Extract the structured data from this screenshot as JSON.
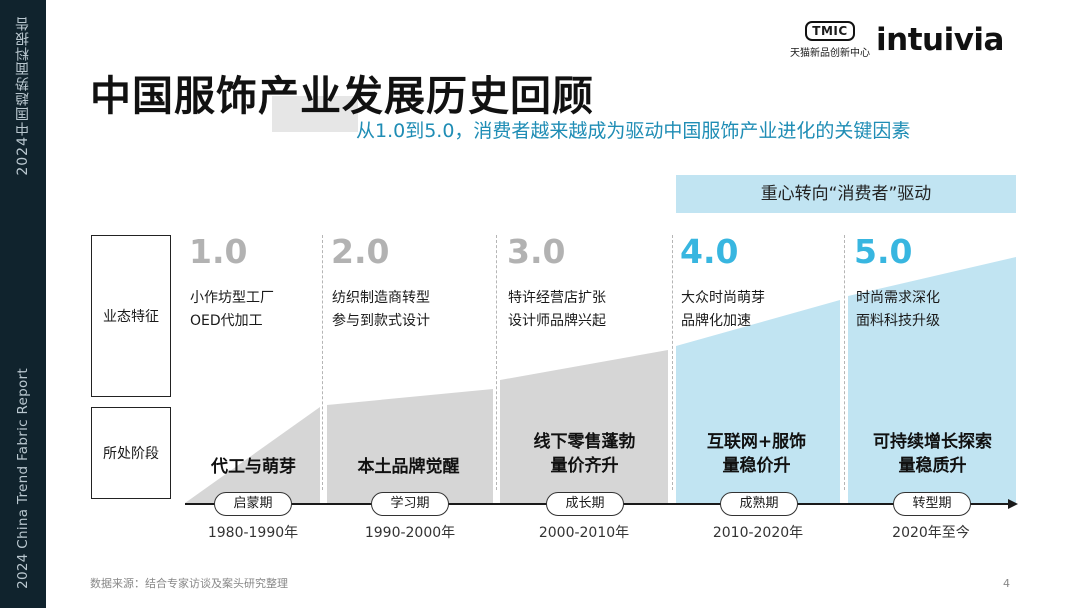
{
  "sidebar": {
    "top": "2024中国趋势面料报告",
    "bottom": "2024 China Trend Fabric Report"
  },
  "logos": {
    "tmic_badge": "TMIC",
    "tmic_sub": "天猫新品创新中心",
    "intuivia": "intuivia"
  },
  "header": {
    "title": "中国服饰产业发展历史回顾",
    "subtitle": "从1.0到5.0，消费者越来越成为驱动中国服饰产业进化的关键因素"
  },
  "banner": "重心转向“消费者”驱动",
  "rows": {
    "features": "业态特征",
    "stage": "所处阶段"
  },
  "colors": {
    "gray_number": "#b2b2b2",
    "blue_number": "#38b6e0",
    "gray_fill": "#d6d6d6",
    "blue_fill": "#c1e4f2",
    "subtitle": "#1f8db5"
  },
  "stages": [
    {
      "number": "1.0",
      "features": [
        "小作坊型工厂",
        "OED代加工"
      ],
      "name": [
        "代工与萌芽"
      ],
      "period": "启蒙期",
      "years": "1980-1990年"
    },
    {
      "number": "2.0",
      "features": [
        "纺织制造商转型",
        "参与到款式设计"
      ],
      "name": [
        "本土品牌觉醒"
      ],
      "period": "学习期",
      "years": "1990-2000年"
    },
    {
      "number": "3.0",
      "features": [
        "特许经营店扩张",
        "设计师品牌兴起"
      ],
      "name": [
        "线下零售蓬勃",
        "量价齐升"
      ],
      "period": "成长期",
      "years": "2000-2010年"
    },
    {
      "number": "4.0",
      "features": [
        "大众时尚萌芽",
        "品牌化加速"
      ],
      "name": [
        "互联网+服饰",
        "量稳价升"
      ],
      "period": "成熟期",
      "years": "2010-2020年"
    },
    {
      "number": "5.0",
      "features": [
        "时尚需求深化",
        "面料科技升级"
      ],
      "name": [
        "可持续增长探索",
        "量稳质升"
      ],
      "period": "转型期",
      "years": "2020年至今"
    }
  ],
  "footer": {
    "source": "数据来源：结合专家访谈及案头研究整理",
    "page": "4"
  }
}
